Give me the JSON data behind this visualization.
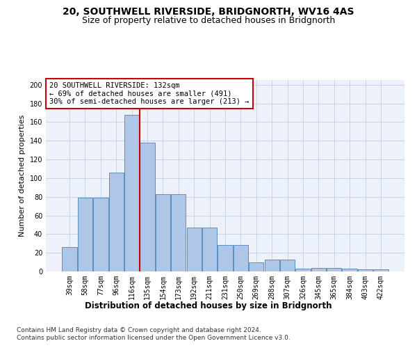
{
  "title1": "20, SOUTHWELL RIVERSIDE, BRIDGNORTH, WV16 4AS",
  "title2": "Size of property relative to detached houses in Bridgnorth",
  "xlabel": "Distribution of detached houses by size in Bridgnorth",
  "ylabel": "Number of detached properties",
  "categories": [
    "39sqm",
    "58sqm",
    "77sqm",
    "96sqm",
    "116sqm",
    "135sqm",
    "154sqm",
    "173sqm",
    "192sqm",
    "211sqm",
    "231sqm",
    "250sqm",
    "269sqm",
    "288sqm",
    "307sqm",
    "326sqm",
    "345sqm",
    "365sqm",
    "384sqm",
    "403sqm",
    "422sqm"
  ],
  "values": [
    26,
    79,
    79,
    106,
    168,
    138,
    83,
    83,
    47,
    47,
    28,
    28,
    10,
    13,
    13,
    3,
    4,
    4,
    3,
    2,
    2
  ],
  "bar_color": "#aec6e8",
  "bar_edge_color": "#5a8fc0",
  "red_line_index": 5,
  "annotation_line1": "20 SOUTHWELL RIVERSIDE: 132sqm",
  "annotation_line2": "← 69% of detached houses are smaller (491)",
  "annotation_line3": "30% of semi-detached houses are larger (213) →",
  "annotation_box_color": "#ffffff",
  "annotation_box_edge": "#cc0000",
  "ylim": [
    0,
    205
  ],
  "yticks": [
    0,
    20,
    40,
    60,
    80,
    100,
    120,
    140,
    160,
    180,
    200
  ],
  "footer1": "Contains HM Land Registry data © Crown copyright and database right 2024.",
  "footer2": "Contains public sector information licensed under the Open Government Licence v3.0.",
  "bg_color": "#edf2fa",
  "title1_fontsize": 10,
  "title2_fontsize": 9,
  "xlabel_fontsize": 8.5,
  "ylabel_fontsize": 8,
  "tick_fontsize": 7,
  "annotation_fontsize": 7.5,
  "footer_fontsize": 6.5
}
